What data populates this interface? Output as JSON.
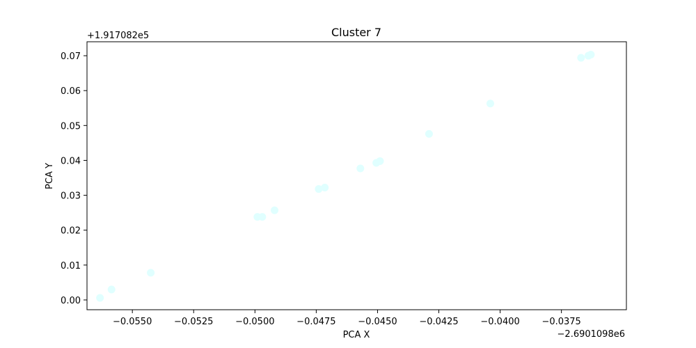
{
  "chart_data": {
    "type": "scatter",
    "title": "Cluster 7",
    "xlabel": "PCA X",
    "ylabel": "PCA Y",
    "x_offset_label": "−2.6901098e6",
    "y_offset_label": "+1.917082e5",
    "xlim": [
      -0.05685,
      -0.03485
    ],
    "ylim": [
      -0.0028,
      0.074
    ],
    "x_ticks": [
      {
        "value": -0.055,
        "label": "−0.0550"
      },
      {
        "value": -0.0525,
        "label": "−0.0525"
      },
      {
        "value": -0.05,
        "label": "−0.0500"
      },
      {
        "value": -0.0475,
        "label": "−0.0475"
      },
      {
        "value": -0.045,
        "label": "−0.0450"
      },
      {
        "value": -0.0425,
        "label": "−0.0425"
      },
      {
        "value": -0.04,
        "label": "−0.0400"
      },
      {
        "value": -0.0375,
        "label": "−0.0375"
      }
    ],
    "y_ticks": [
      {
        "value": 0.0,
        "label": "0.00"
      },
      {
        "value": 0.01,
        "label": "0.01"
      },
      {
        "value": 0.02,
        "label": "0.02"
      },
      {
        "value": 0.03,
        "label": "0.03"
      },
      {
        "value": 0.04,
        "label": "0.04"
      },
      {
        "value": 0.05,
        "label": "0.05"
      },
      {
        "value": 0.06,
        "label": "0.06"
      },
      {
        "value": 0.07,
        "label": "0.07"
      }
    ],
    "marker_color": "#e0ffff",
    "grid": false,
    "points": [
      {
        "x": -0.05632,
        "y": 0.0006
      },
      {
        "x": -0.05585,
        "y": 0.003
      },
      {
        "x": -0.05425,
        "y": 0.0078
      },
      {
        "x": -0.0499,
        "y": 0.0238
      },
      {
        "x": -0.0497,
        "y": 0.0238
      },
      {
        "x": -0.0492,
        "y": 0.0257
      },
      {
        "x": -0.0474,
        "y": 0.0318
      },
      {
        "x": -0.04715,
        "y": 0.0322
      },
      {
        "x": -0.0457,
        "y": 0.0377
      },
      {
        "x": -0.04505,
        "y": 0.0393
      },
      {
        "x": -0.0449,
        "y": 0.0398
      },
      {
        "x": -0.0429,
        "y": 0.0476
      },
      {
        "x": -0.0404,
        "y": 0.0563
      },
      {
        "x": -0.0367,
        "y": 0.0694
      },
      {
        "x": -0.0364,
        "y": 0.07
      },
      {
        "x": -0.0363,
        "y": 0.0703
      }
    ]
  }
}
